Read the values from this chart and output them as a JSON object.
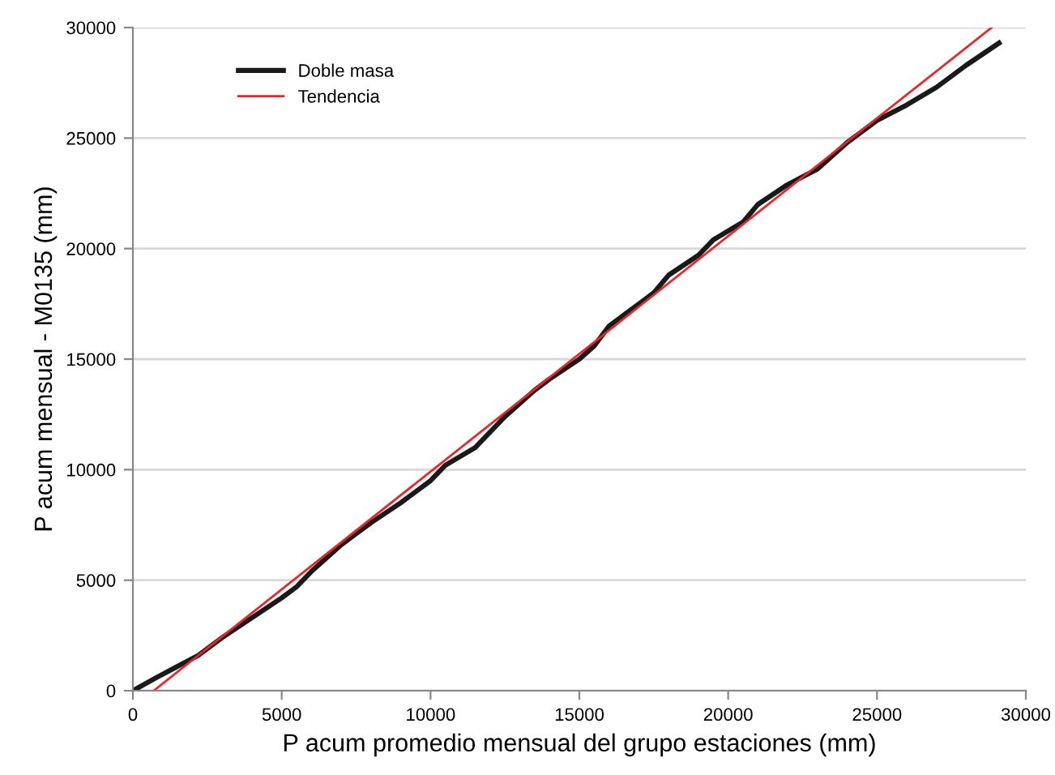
{
  "chart_data": {
    "type": "line",
    "xlabel": "P acum promedio mensual del grupo estaciones (mm)",
    "ylabel": "P acum mensual - M0135 (mm)",
    "xlim": [
      0,
      30000
    ],
    "xticks": [
      0,
      5000,
      10000,
      15000,
      20000,
      25000,
      30000
    ],
    "ylim": [
      0,
      30000
    ],
    "yticks": [
      0,
      5000,
      10000,
      15000,
      20000,
      25000,
      30000
    ],
    "grid": "y",
    "legend": "top left",
    "series": [
      {
        "name": "Doble masa",
        "color": "#1a1a1a",
        "x": [
          0,
          800,
          1500,
          2200,
          3000,
          4000,
          5000,
          5500,
          6000,
          6500,
          7000,
          7500,
          8000,
          9000,
          10000,
          10500,
          11500,
          12500,
          13500,
          14000,
          15000,
          15500,
          16000,
          16500,
          17000,
          17500,
          18000,
          19000,
          19500,
          20500,
          21000,
          22000,
          23000,
          24000,
          25000,
          26000,
          27000,
          28000,
          29100
        ],
        "values": [
          0,
          600,
          1100,
          1600,
          2400,
          3300,
          4200,
          4700,
          5400,
          6000,
          6600,
          7100,
          7600,
          8500,
          9500,
          10200,
          11000,
          12400,
          13600,
          14100,
          15000,
          15600,
          16500,
          17000,
          17500,
          18000,
          18800,
          19700,
          20400,
          21200,
          22000,
          22900,
          23600,
          24800,
          25800,
          26500,
          27300,
          28300,
          29300
        ]
      },
      {
        "name": "Tendencia",
        "color": "#e8262a",
        "x": [
          700,
          28850
        ],
        "values": [
          0,
          30000
        ]
      }
    ]
  }
}
